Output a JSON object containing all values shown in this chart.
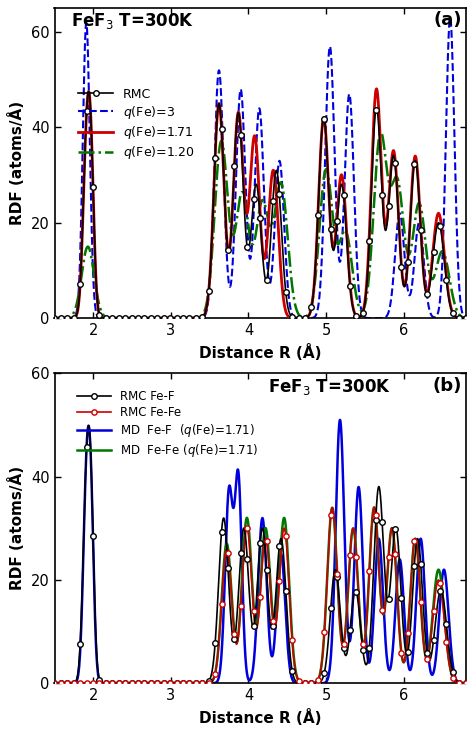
{
  "title_a": "FeF$_3$ T=300K",
  "title_b": "FeF$_3$ T=300K",
  "label_a": "(a)",
  "label_b": "(b)",
  "xlabel": "Distance R (Å)",
  "ylabel": "RDF (atoms/Å)",
  "xlim": [
    1.5,
    6.8
  ],
  "ylim_a": [
    0,
    65
  ],
  "ylim_b": [
    0,
    60
  ],
  "xticks": [
    2,
    3,
    4,
    5,
    6
  ],
  "yticks_a": [
    0,
    20,
    40,
    60
  ],
  "yticks_b": [
    0,
    20,
    40,
    60
  ]
}
